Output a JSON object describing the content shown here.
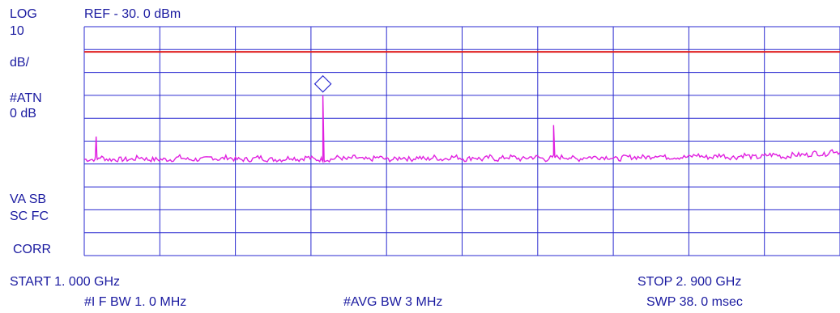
{
  "header": {
    "scale_mode": "LOG",
    "ref_level": "REF - 30. 0 dBm"
  },
  "left_panel": {
    "scale_value": "10",
    "scale_unit": "dB/",
    "attenuation_label": "#ATN",
    "attenuation_value": "0 dB",
    "va_sb": "VA SB",
    "sc_fc": "SC FC",
    "corr": "CORR"
  },
  "footer": {
    "start": "START 1. 000 GHz",
    "stop": "STOP 2. 900 GHz",
    "if_bw": "#I F BW 1. 0 MHz",
    "avg_bw": "#AVG BW 3 MHz",
    "swp": "SWP 38. 0 msec"
  },
  "colors": {
    "grid": "#2a2ad0",
    "trace": "#e020e0",
    "display_line": "#e02020",
    "text": "#1a1aa0"
  },
  "chart_data": {
    "type": "line",
    "x_unit": "GHz",
    "y_unit": "dBm",
    "xlim": [
      1.0,
      2.9
    ],
    "ylim": [
      -130,
      -30
    ],
    "grid": true,
    "display_line_dbm": -41,
    "marker": {
      "x": 1.6,
      "y": -55
    },
    "series": [
      {
        "x": [
          1.0,
          1.02,
          1.04,
          1.06,
          1.08,
          1.1,
          1.12,
          1.14,
          1.16,
          1.18,
          1.2,
          1.22,
          1.24,
          1.26,
          1.28,
          1.3,
          1.32,
          1.34,
          1.36,
          1.38,
          1.4,
          1.42,
          1.44,
          1.46,
          1.48,
          1.5,
          1.52,
          1.54,
          1.56,
          1.58,
          1.6,
          1.62,
          1.64,
          1.66,
          1.68,
          1.7,
          1.72,
          1.74,
          1.76,
          1.78,
          1.8,
          1.82,
          1.84,
          1.86,
          1.88,
          1.9,
          1.92,
          1.94,
          1.96,
          1.98,
          2.0,
          2.02,
          2.04,
          2.06,
          2.08,
          2.1,
          2.12,
          2.14,
          2.16,
          2.18,
          2.2,
          2.22,
          2.24,
          2.26,
          2.28,
          2.3,
          2.32,
          2.34,
          2.36,
          2.38,
          2.4,
          2.42,
          2.44,
          2.46,
          2.48,
          2.5,
          2.52,
          2.54,
          2.56,
          2.58,
          2.6,
          2.62,
          2.64,
          2.66,
          2.68,
          2.7,
          2.72,
          2.74,
          2.76,
          2.78,
          2.8,
          2.82,
          2.84,
          2.86,
          2.88,
          2.9
        ],
        "values": [
          -88,
          -88,
          -87,
          -88,
          -88,
          -88,
          -88,
          -87,
          -88,
          -88,
          -88,
          -88,
          -87,
          -88,
          -88,
          -88,
          -87,
          -88,
          -87,
          -88,
          -88,
          -88,
          -87,
          -88,
          -88,
          -88,
          -87,
          -88,
          -87,
          -88,
          -88,
          -88,
          -87,
          -88,
          -87,
          -88,
          -88,
          -87,
          -88,
          -88,
          -87,
          -88,
          -87,
          -88,
          -87,
          -88,
          -87,
          -87,
          -88,
          -87,
          -88,
          -87,
          -88,
          -87,
          -87,
          -88,
          -87,
          -87,
          -88,
          -87,
          -87,
          -87,
          -88,
          -87,
          -87,
          -87,
          -87,
          -88,
          -87,
          -87,
          -87,
          -87,
          -86,
          -87,
          -87,
          -87,
          -87,
          -86,
          -87,
          -87,
          -86,
          -87,
          -87,
          -86,
          -87,
          -87,
          -86,
          -86,
          -87,
          -86,
          -86,
          -86,
          -85,
          -86,
          -84,
          -85
        ]
      }
    ],
    "spurs": [
      {
        "x": 1.03,
        "y": -78
      },
      {
        "x": 1.6,
        "y": -60
      },
      {
        "x": 2.18,
        "y": -73
      }
    ]
  }
}
